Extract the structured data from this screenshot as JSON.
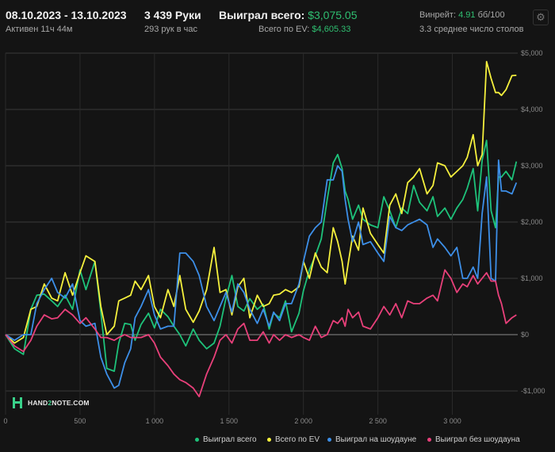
{
  "header": {
    "date_range": "08.10.2023 - 13.10.2023",
    "active": "Активен 11ч 44м",
    "hands": "3 439 Руки",
    "hands_per_hour": "293 рук в час",
    "won_label": "Выиграл всего:",
    "won_value": "$3,075.05",
    "ev_label": "Всего по EV:",
    "ev_value": "$4,605.33",
    "winrate_label": "Винрейт:",
    "winrate_value": "4.91",
    "winrate_unit": "бб/100",
    "tables": "3.3 среднее число столов"
  },
  "logo": {
    "text_a": "HAND",
    "text_b": "2",
    "text_c": "NOTE.COM"
  },
  "colors": {
    "won": "#1ec27a",
    "ev": "#f5f03d",
    "showdown": "#3d8fe8",
    "nonshowdown": "#e8407a",
    "accent": "#2fbf71"
  },
  "chart_data": {
    "type": "line",
    "x_label": "",
    "y_label": "",
    "xlim": [
      0,
      3439
    ],
    "ylim": [
      -1000,
      5000
    ],
    "x_ticks": [
      0,
      500,
      1000,
      1500,
      2000,
      2500,
      3000
    ],
    "x_tick_labels": [
      "0",
      "500",
      "1 000",
      "1 500",
      "2 000",
      "2 500",
      "3 000"
    ],
    "y_ticks": [
      5000,
      4000,
      3000,
      2000,
      1000,
      0,
      -1000
    ],
    "y_tick_labels": [
      "$5,000",
      "$4,000",
      "$3,000",
      "$2,000",
      "$1,000",
      "$0",
      "-$1,000"
    ],
    "series": [
      {
        "name": "Выиграл всего",
        "color": "#1ec27a",
        "x": [
          0,
          60,
          120,
          170,
          210,
          260,
          310,
          350,
          400,
          450,
          500,
          540,
          600,
          640,
          680,
          730,
          760,
          800,
          840,
          870,
          910,
          960,
          1000,
          1040,
          1090,
          1130,
          1170,
          1210,
          1260,
          1300,
          1350,
          1400,
          1440,
          1480,
          1520,
          1560,
          1600,
          1640,
          1690,
          1730,
          1770,
          1800,
          1840,
          1880,
          1920,
          1970,
          2000,
          2040,
          2080,
          2120,
          2160,
          2200,
          2230,
          2260,
          2280,
          2300,
          2330,
          2370,
          2400,
          2450,
          2500,
          2540,
          2580,
          2620,
          2660,
          2700,
          2740,
          2780,
          2830,
          2870,
          2900,
          2950,
          2990,
          3030,
          3070,
          3100,
          3140,
          3170,
          3200,
          3230,
          3260,
          3290,
          3310,
          3330,
          3360,
          3400,
          3430
        ],
        "y": [
          0,
          -250,
          -350,
          450,
          700,
          720,
          600,
          500,
          700,
          450,
          1150,
          800,
          1300,
          400,
          -600,
          -650,
          -150,
          200,
          180,
          -100,
          180,
          380,
          120,
          450,
          320,
          150,
          0,
          -200,
          100,
          -100,
          -250,
          -150,
          150,
          650,
          1050,
          500,
          420,
          640,
          450,
          540,
          100,
          380,
          300,
          600,
          50,
          380,
          780,
          1150,
          1400,
          1700,
          2400,
          3050,
          3200,
          2950,
          2550,
          2400,
          2050,
          2300,
          2050,
          1950,
          1900,
          2450,
          2200,
          1900,
          2250,
          2150,
          2650,
          2350,
          2200,
          2450,
          2100,
          2250,
          2050,
          2250,
          2400,
          2600,
          2950,
          2200,
          3100,
          3450,
          2200,
          1900,
          2800,
          2800,
          2900,
          2750,
          3075
        ]
      },
      {
        "name": "Всего по EV",
        "color": "#f5f03d",
        "x": [
          0,
          60,
          120,
          170,
          210,
          260,
          310,
          350,
          400,
          450,
          500,
          540,
          600,
          640,
          680,
          730,
          760,
          800,
          840,
          870,
          910,
          960,
          1000,
          1040,
          1090,
          1130,
          1170,
          1210,
          1260,
          1300,
          1350,
          1400,
          1440,
          1480,
          1520,
          1560,
          1600,
          1640,
          1690,
          1730,
          1770,
          1800,
          1840,
          1880,
          1920,
          1970,
          2000,
          2040,
          2080,
          2120,
          2160,
          2200,
          2230,
          2260,
          2280,
          2300,
          2330,
          2370,
          2400,
          2450,
          2500,
          2540,
          2580,
          2620,
          2660,
          2700,
          2740,
          2780,
          2830,
          2870,
          2900,
          2950,
          2990,
          3030,
          3070,
          3100,
          3140,
          3170,
          3200,
          3230,
          3260,
          3290,
          3310,
          3330,
          3360,
          3400,
          3430
        ],
        "y": [
          0,
          -150,
          -50,
          450,
          500,
          900,
          650,
          600,
          1100,
          700,
          1100,
          1400,
          1300,
          500,
          0,
          150,
          600,
          650,
          700,
          950,
          800,
          1050,
          500,
          300,
          800,
          500,
          1050,
          450,
          220,
          420,
          800,
          1550,
          750,
          800,
          350,
          850,
          1000,
          300,
          700,
          500,
          550,
          700,
          720,
          800,
          750,
          850,
          1300,
          1000,
          1450,
          1200,
          1100,
          1900,
          1650,
          1300,
          900,
          1250,
          1750,
          1500,
          2250,
          1800,
          1600,
          1450,
          2300,
          2500,
          2150,
          2700,
          2800,
          2950,
          2500,
          2650,
          3050,
          3000,
          2800,
          2900,
          3000,
          3150,
          3550,
          3000,
          3200,
          4850,
          4550,
          4300,
          4300,
          4250,
          4350,
          4600,
          4605
        ]
      },
      {
        "name": "Выиграл на шоудауне",
        "color": "#3d8fe8",
        "x": [
          0,
          60,
          120,
          170,
          210,
          260,
          310,
          350,
          400,
          450,
          500,
          540,
          600,
          640,
          680,
          730,
          760,
          800,
          840,
          870,
          910,
          960,
          1000,
          1040,
          1090,
          1130,
          1170,
          1210,
          1260,
          1300,
          1350,
          1400,
          1440,
          1480,
          1520,
          1560,
          1600,
          1640,
          1690,
          1730,
          1770,
          1800,
          1840,
          1880,
          1920,
          1970,
          2000,
          2040,
          2080,
          2120,
          2160,
          2200,
          2230,
          2260,
          2280,
          2300,
          2330,
          2370,
          2400,
          2450,
          2500,
          2540,
          2580,
          2620,
          2660,
          2700,
          2740,
          2780,
          2830,
          2870,
          2900,
          2950,
          2990,
          3030,
          3070,
          3100,
          3140,
          3170,
          3200,
          3230,
          3260,
          3290,
          3310,
          3330,
          3360,
          3400,
          3430
        ],
        "y": [
          0,
          -100,
          0,
          0,
          550,
          800,
          1000,
          750,
          650,
          900,
          250,
          150,
          200,
          -400,
          -700,
          -950,
          -900,
          -500,
          -250,
          300,
          500,
          800,
          350,
          100,
          150,
          150,
          1450,
          1450,
          1300,
          1050,
          500,
          250,
          500,
          750,
          400,
          900,
          750,
          450,
          200,
          450,
          150,
          400,
          250,
          550,
          550,
          900,
          1300,
          1750,
          1900,
          2000,
          2750,
          2750,
          3000,
          2900,
          2400,
          2050,
          1650,
          2000,
          1600,
          1650,
          1450,
          1300,
          2100,
          1900,
          1850,
          1950,
          2000,
          2050,
          1950,
          1550,
          1700,
          1550,
          1400,
          1550,
          1000,
          1000,
          1200,
          1000,
          2150,
          2800,
          1000,
          950,
          3100,
          2550,
          2550,
          2500,
          2700
        ]
      },
      {
        "name": "Выиграл без шоудауна",
        "color": "#e8407a",
        "x": [
          0,
          60,
          120,
          170,
          210,
          260,
          310,
          350,
          400,
          450,
          500,
          540,
          600,
          640,
          680,
          730,
          760,
          800,
          840,
          870,
          910,
          960,
          1000,
          1040,
          1090,
          1130,
          1170,
          1210,
          1260,
          1300,
          1350,
          1400,
          1440,
          1480,
          1520,
          1560,
          1600,
          1640,
          1690,
          1730,
          1770,
          1800,
          1840,
          1880,
          1920,
          1970,
          2000,
          2040,
          2080,
          2120,
          2160,
          2200,
          2230,
          2260,
          2280,
          2300,
          2330,
          2370,
          2400,
          2450,
          2500,
          2540,
          2580,
          2620,
          2660,
          2700,
          2740,
          2780,
          2830,
          2870,
          2900,
          2950,
          2990,
          3030,
          3070,
          3100,
          3140,
          3170,
          3200,
          3230,
          3260,
          3290,
          3310,
          3330,
          3360,
          3400,
          3430
        ],
        "y": [
          0,
          -200,
          -300,
          -100,
          150,
          350,
          280,
          300,
          450,
          350,
          200,
          300,
          100,
          -50,
          -50,
          -100,
          -50,
          0,
          -50,
          -50,
          -50,
          0,
          -150,
          -400,
          -550,
          -700,
          -800,
          -850,
          -950,
          -1100,
          -700,
          -400,
          -100,
          0,
          -150,
          100,
          200,
          -100,
          -100,
          50,
          -150,
          0,
          -100,
          0,
          -50,
          0,
          -50,
          -100,
          150,
          -50,
          0,
          250,
          200,
          300,
          150,
          450,
          300,
          400,
          150,
          100,
          300,
          500,
          350,
          550,
          300,
          600,
          550,
          550,
          650,
          700,
          600,
          1150,
          1000,
          750,
          900,
          850,
          1050,
          900,
          1000,
          1100,
          950,
          950,
          700,
          550,
          200,
          300,
          350
        ]
      }
    ]
  },
  "legend_items": [
    {
      "label": "Выиграл всего",
      "color": "#1ec27a"
    },
    {
      "label": "Всего по EV",
      "color": "#f5f03d"
    },
    {
      "label": "Выиграл на шоудауне",
      "color": "#3d8fe8"
    },
    {
      "label": "Выиграл без шоудауна",
      "color": "#e8407a"
    }
  ]
}
